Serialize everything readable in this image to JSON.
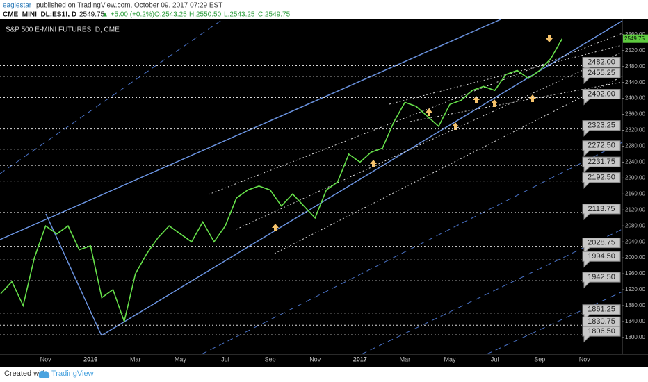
{
  "header": {
    "author": "eaglestar",
    "published": "published on TradingView.com, October 09, 2017 07:29 EST"
  },
  "symbol_bar": {
    "symbol": "CME_MINI_DL:ES1!, D",
    "last": "2549.75",
    "change": "▲ +5.00 (+0.2%)",
    "open": "O:2543.25",
    "high": "H:2550.50",
    "low": "L:2543.25",
    "close": "C:2549.75"
  },
  "chart_data": {
    "type": "line",
    "title": "S&P 500 E-MINI FUTURES, D, CME",
    "color": "#66e04a",
    "categories": [
      null,
      null,
      null,
      null,
      "Nov",
      null,
      null,
      null,
      "2016",
      null,
      null,
      null,
      "Mar",
      null,
      null,
      null,
      "May",
      null,
      null,
      null,
      "Jul",
      null,
      null,
      null,
      "Sep",
      null,
      null,
      null,
      "Nov",
      null,
      null,
      null,
      "2017",
      null,
      null,
      null,
      "Mar",
      null,
      null,
      null,
      "May",
      null,
      null,
      null,
      "Jul",
      null,
      null,
      null,
      "Sep",
      null,
      null,
      null,
      "Nov"
    ],
    "values": [
      1910,
      1940,
      1880,
      2000,
      2080,
      2060,
      2080,
      2020,
      2030,
      1900,
      1920,
      1840,
      1960,
      2010,
      2050,
      2080,
      2060,
      2040,
      2090,
      2040,
      2080,
      2150,
      2170,
      2180,
      2170,
      2130,
      2160,
      2130,
      2100,
      2170,
      2190,
      2260,
      2240,
      2265,
      2275,
      2340,
      2390,
      2380,
      2355,
      2330,
      2385,
      2395,
      2420,
      2430,
      2420,
      2460,
      2470,
      2450,
      2470,
      2500,
      2549.75,
      null,
      null
    ],
    "ylim": [
      1758,
      2598
    ],
    "yticks": [
      {
        "value": 1800,
        "label": "1800.00"
      },
      {
        "value": 1840,
        "label": "1840.00"
      },
      {
        "value": 1880,
        "label": "1880.00"
      },
      {
        "value": 1920,
        "label": "1920.00"
      },
      {
        "value": 1960,
        "label": "1960.00"
      },
      {
        "value": 2000,
        "label": "2000.00"
      },
      {
        "value": 2040,
        "label": "2040.00"
      },
      {
        "value": 2080,
        "label": "2080.00"
      },
      {
        "value": 2120,
        "label": "2120.00"
      },
      {
        "value": 2160,
        "label": "2160.00"
      },
      {
        "value": 2200,
        "label": "2200.00"
      },
      {
        "value": 2240,
        "label": "2240.00"
      },
      {
        "value": 2280,
        "label": "2280.00"
      },
      {
        "value": 2320,
        "label": "2320.00"
      },
      {
        "value": 2360,
        "label": "2360.00"
      },
      {
        "value": 2400,
        "label": "2400.00"
      },
      {
        "value": 2440,
        "label": "2440.00"
      },
      {
        "value": 2480,
        "label": "2480.00"
      },
      {
        "value": 2520,
        "label": "2520.00"
      },
      {
        "value": 2560,
        "label": "2560.00"
      }
    ],
    "price_tag": {
      "value": 2549.75,
      "label": "2549.75"
    },
    "levels": [
      {
        "value": 2482,
        "label": "2482.00"
      },
      {
        "value": 2455.25,
        "label": "2455.25"
      },
      {
        "value": 2402,
        "label": "2402.00"
      },
      {
        "value": 2323.25,
        "label": "2323.25"
      },
      {
        "value": 2272.5,
        "label": "2272.50"
      },
      {
        "value": 2231.75,
        "label": "2231.75"
      },
      {
        "value": 2192.5,
        "label": "2192.50"
      },
      {
        "value": 2113.75,
        "label": "2113.75"
      },
      {
        "value": 2028.75,
        "label": "2028.75"
      },
      {
        "value": 1994.5,
        "label": "1994.50"
      },
      {
        "value": 1942.5,
        "label": "1942.50"
      },
      {
        "value": 1861.25,
        "label": "1861.25"
      },
      {
        "value": 1830.75,
        "label": "1830.75"
      },
      {
        "value": 1806.5,
        "label": "1806.50"
      }
    ]
  },
  "footer": {
    "text": "Created with",
    "brand": "TradingView"
  }
}
